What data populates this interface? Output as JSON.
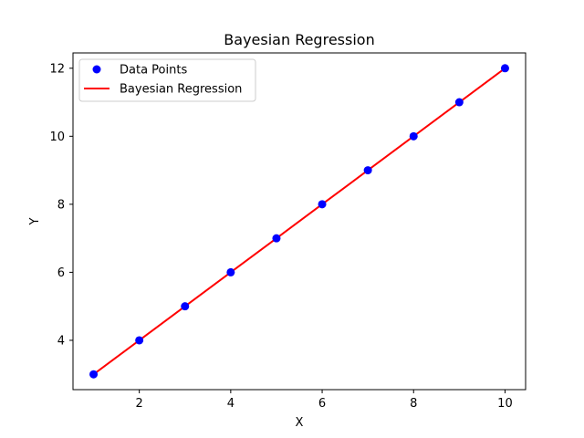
{
  "chart_data": {
    "type": "scatter",
    "title": "Bayesian Regression",
    "xlabel": "X",
    "ylabel": "Y",
    "xlim": [
      0.55,
      10.45
    ],
    "ylim": [
      2.55,
      12.45
    ],
    "xticks": [
      2,
      4,
      6,
      8,
      10
    ],
    "yticks": [
      4,
      6,
      8,
      10,
      12
    ],
    "grid": false,
    "legend_position": "upper-left",
    "series": [
      {
        "name": "Data Points",
        "kind": "scatter",
        "color": "#0000ff",
        "x": [
          1,
          2,
          3,
          4,
          5,
          6,
          7,
          8,
          9,
          10
        ],
        "y": [
          3,
          4,
          5,
          6,
          7,
          8,
          9,
          10,
          11,
          12
        ]
      },
      {
        "name": "Bayesian Regression",
        "kind": "line",
        "color": "#ff0000",
        "x": [
          1,
          2,
          3,
          4,
          5,
          6,
          7,
          8,
          9,
          10
        ],
        "y": [
          3,
          4,
          5,
          6,
          7,
          8,
          9,
          10,
          11,
          12
        ]
      }
    ]
  }
}
